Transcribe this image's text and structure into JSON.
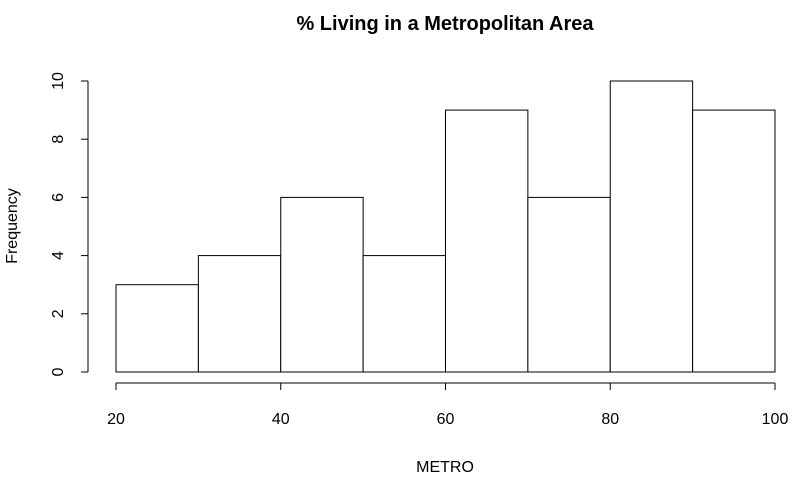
{
  "chart_data": {
    "type": "bar",
    "title": "% Living in a Metropolitan Area",
    "xlabel": "METRO",
    "ylabel": "Frequency",
    "bins": [
      {
        "from": 20,
        "to": 30,
        "count": 3
      },
      {
        "from": 30,
        "to": 40,
        "count": 4
      },
      {
        "from": 40,
        "to": 50,
        "count": 6
      },
      {
        "from": 50,
        "to": 60,
        "count": 4
      },
      {
        "from": 60,
        "to": 70,
        "count": 9
      },
      {
        "from": 70,
        "to": 80,
        "count": 6
      },
      {
        "from": 80,
        "to": 90,
        "count": 10
      },
      {
        "from": 90,
        "to": 100,
        "count": 9
      }
    ],
    "xlim": [
      20,
      100
    ],
    "ylim": [
      0,
      10
    ],
    "x_ticks": [
      20,
      40,
      60,
      80,
      100
    ],
    "y_ticks": [
      0,
      2,
      4,
      6,
      8,
      10
    ],
    "grid": false,
    "bar_fill": "#ffffff",
    "bar_stroke": "#000000"
  }
}
